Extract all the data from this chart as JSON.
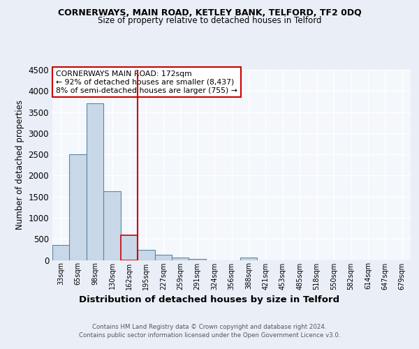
{
  "title1": "CORNERWAYS, MAIN ROAD, KETLEY BANK, TELFORD, TF2 0DQ",
  "title2": "Size of property relative to detached houses in Telford",
  "xlabel": "Distribution of detached houses by size in Telford",
  "ylabel": "Number of detached properties",
  "footnote1": "Contains HM Land Registry data © Crown copyright and database right 2024.",
  "footnote2": "Contains public sector information licensed under the Open Government Licence v3.0.",
  "bin_labels": [
    "33sqm",
    "65sqm",
    "98sqm",
    "130sqm",
    "162sqm",
    "195sqm",
    "227sqm",
    "259sqm",
    "291sqm",
    "324sqm",
    "356sqm",
    "388sqm",
    "421sqm",
    "453sqm",
    "485sqm",
    "518sqm",
    "550sqm",
    "582sqm",
    "614sqm",
    "647sqm",
    "679sqm"
  ],
  "bar_values": [
    350,
    2500,
    3700,
    1620,
    580,
    245,
    120,
    50,
    30,
    0,
    0,
    50,
    0,
    0,
    0,
    0,
    0,
    0,
    0,
    0,
    0
  ],
  "bar_color": "#c8d8e8",
  "bar_edge_color": "#5888a8",
  "highlight_bin_index": 4,
  "vline_color": "#cc0000",
  "annotation_text": "CORNERWAYS MAIN ROAD: 172sqm\n← 92% of detached houses are smaller (8,437)\n8% of semi-detached houses are larger (755) →",
  "annotation_box_color": "#ffffff",
  "annotation_box_edge_color": "#cc0000",
  "ylim": [
    0,
    4500
  ],
  "yticks": [
    0,
    500,
    1000,
    1500,
    2000,
    2500,
    3000,
    3500,
    4000,
    4500
  ],
  "background_color": "#eaeff7",
  "plot_bg_color": "#f4f7fc",
  "grid_color": "#ffffff"
}
